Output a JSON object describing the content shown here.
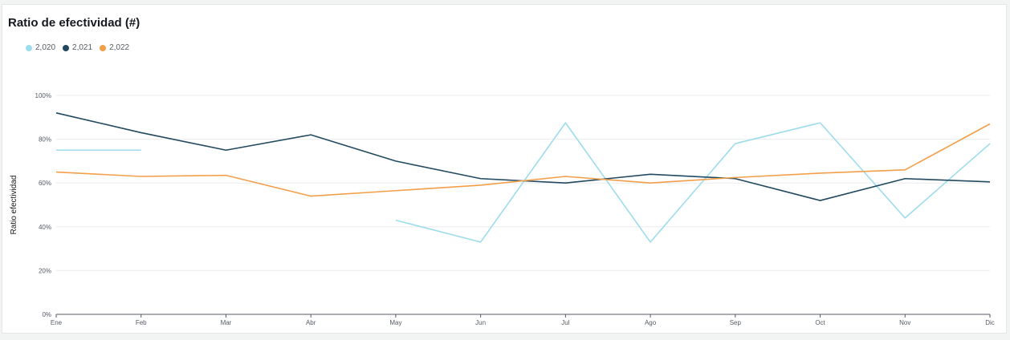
{
  "title": "Ratio de efectividad (#)",
  "legend": [
    {
      "label": "2,020",
      "color": "#9ddcec"
    },
    {
      "label": "2,021",
      "color": "#22495f"
    },
    {
      "label": "2,022",
      "color": "#f29f4a"
    }
  ],
  "chart_data": {
    "type": "line",
    "title": "Ratio de efectividad (#)",
    "ylabel": "Ratio efectividad",
    "xlabel": "",
    "categories": [
      "Ene",
      "Feb",
      "Mar",
      "Abr",
      "May",
      "Jun",
      "Jul",
      "Ago",
      "Sep",
      "Oct",
      "Nov",
      "Dic"
    ],
    "ylim": [
      0,
      100
    ],
    "yticks": [
      0,
      20,
      40,
      60,
      80,
      100
    ],
    "ytick_labels": [
      "0%",
      "20%",
      "40%",
      "60%",
      "80%",
      "100%"
    ],
    "grid": true,
    "legend_position": "top-left",
    "series": [
      {
        "name": "2,020",
        "color": "#9ddcec",
        "values": [
          75,
          75,
          null,
          null,
          43,
          33,
          87.5,
          33,
          78,
          87.5,
          44,
          78
        ]
      },
      {
        "name": "2,021",
        "color": "#22495f",
        "values": [
          92,
          83,
          75,
          82,
          70,
          62,
          60,
          64,
          62,
          52,
          62,
          60.5
        ]
      },
      {
        "name": "2,022",
        "color": "#f29f4a",
        "values": [
          65,
          63,
          63.5,
          54,
          56.5,
          59,
          63,
          60,
          62.5,
          64.5,
          66,
          87
        ]
      }
    ]
  }
}
